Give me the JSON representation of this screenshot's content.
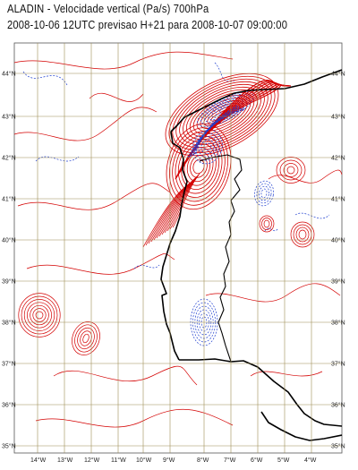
{
  "header": {
    "line1": "ALADIN  -  Velocidade vertical (Pa/s) 700hPa",
    "line2": "2008-10-06  12UTC  previsao H+21 para  2008-10-07 09:00:00"
  },
  "map": {
    "lat_labels": [
      "44°N",
      "43°N",
      "42°N",
      "41°N",
      "40°N",
      "39°N",
      "38°N",
      "37°N",
      "36°N",
      "35°N"
    ],
    "lon_labels": [
      "14°W",
      "13°W",
      "12°W",
      "11°W",
      "10°W",
      "9°W",
      "8°W",
      "7°W",
      "6°W",
      "5°W",
      "4°W"
    ],
    "colors": {
      "positive_contour": "#d40000",
      "negative_contour": "#1f3fcf",
      "grid": "#9e8e55",
      "coastline": "#000000"
    }
  }
}
